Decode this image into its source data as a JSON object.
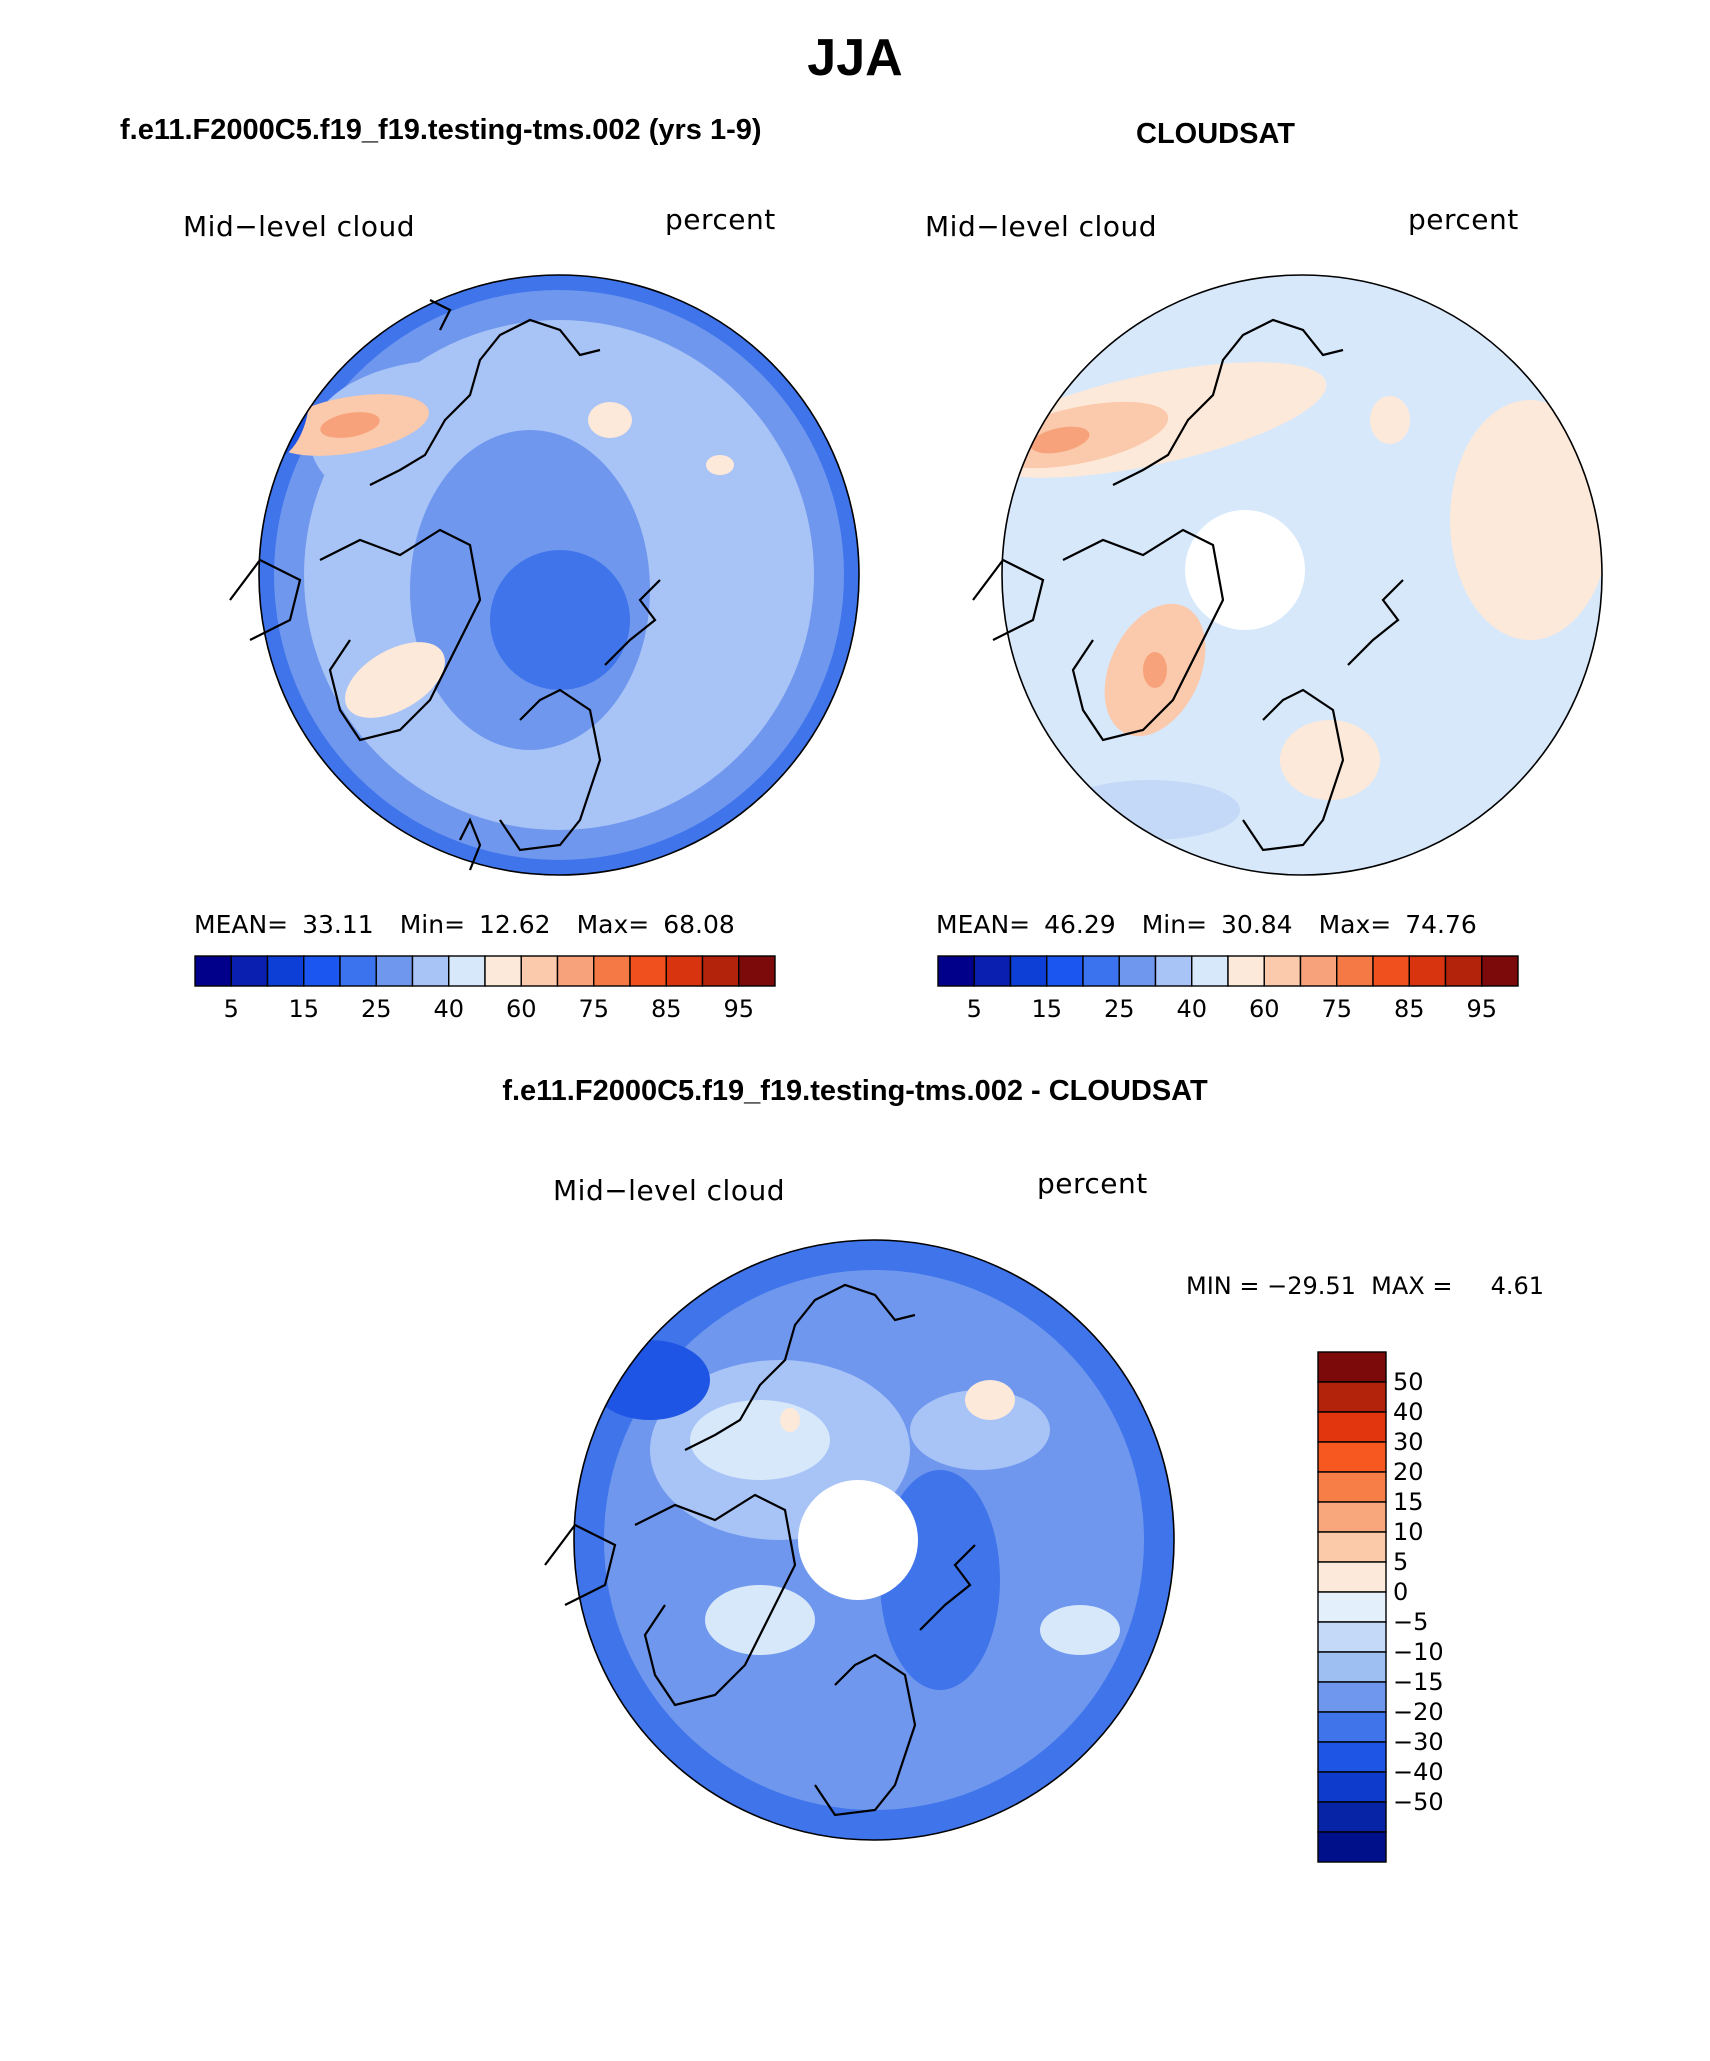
{
  "main_title": "JJA",
  "panels": {
    "model": {
      "title": "f.e11.F2000C5.f19_f19.testing-tms.002 (yrs 1-9)",
      "left_label": "Mid−level cloud",
      "right_label": "percent",
      "mean_label": "MEAN=",
      "mean": "33.11",
      "min_label": "Min=",
      "min": "12.62",
      "max_label": "Max=",
      "max": "68.08"
    },
    "obs": {
      "title": "CLOUDSAT",
      "left_label": "Mid−level cloud",
      "right_label": "percent",
      "mean_label": "MEAN=",
      "mean": "46.29",
      "min_label": "Min=",
      "min": "30.84",
      "max_label": "Max=",
      "max": "74.76"
    },
    "diff": {
      "title": "f.e11.F2000C5.f19_f19.testing-tms.002 - CLOUDSAT",
      "left_label": "Mid−level cloud",
      "right_label": "percent",
      "minmax_text": "MIN = −29.51  MAX =     4.61"
    }
  },
  "colorbar_abs": {
    "colors": [
      "#00008b",
      "#0a1fb0",
      "#0d3ed6",
      "#1a56ef",
      "#3b73ef",
      "#6f97ee",
      "#a8c3f6",
      "#d7e8fb",
      "#fde9d9",
      "#fbc9ab",
      "#f7a27a",
      "#f47945",
      "#f0501d",
      "#d93410",
      "#b3230b",
      "#7d0a0a"
    ],
    "tick_labels": [
      "5",
      "15",
      "25",
      "40",
      "60",
      "75",
      "85",
      "95"
    ]
  },
  "colorbar_diff": {
    "colors": [
      "#7d0a0a",
      "#b3230b",
      "#e2360f",
      "#f7581f",
      "#f87e48",
      "#f8a77d",
      "#fbcaa9",
      "#fde9d9",
      "#e3effb",
      "#c4d9f7",
      "#9ebff2",
      "#6f97ee",
      "#3f74eb",
      "#1f55e4",
      "#0e3bcc",
      "#0724a6",
      "#00108a"
    ],
    "tick_labels": [
      "50",
      "40",
      "30",
      "20",
      "15",
      "10",
      "5",
      "0",
      "−5",
      "−10",
      "−15",
      "−20",
      "−30",
      "−40",
      "−50"
    ]
  }
}
